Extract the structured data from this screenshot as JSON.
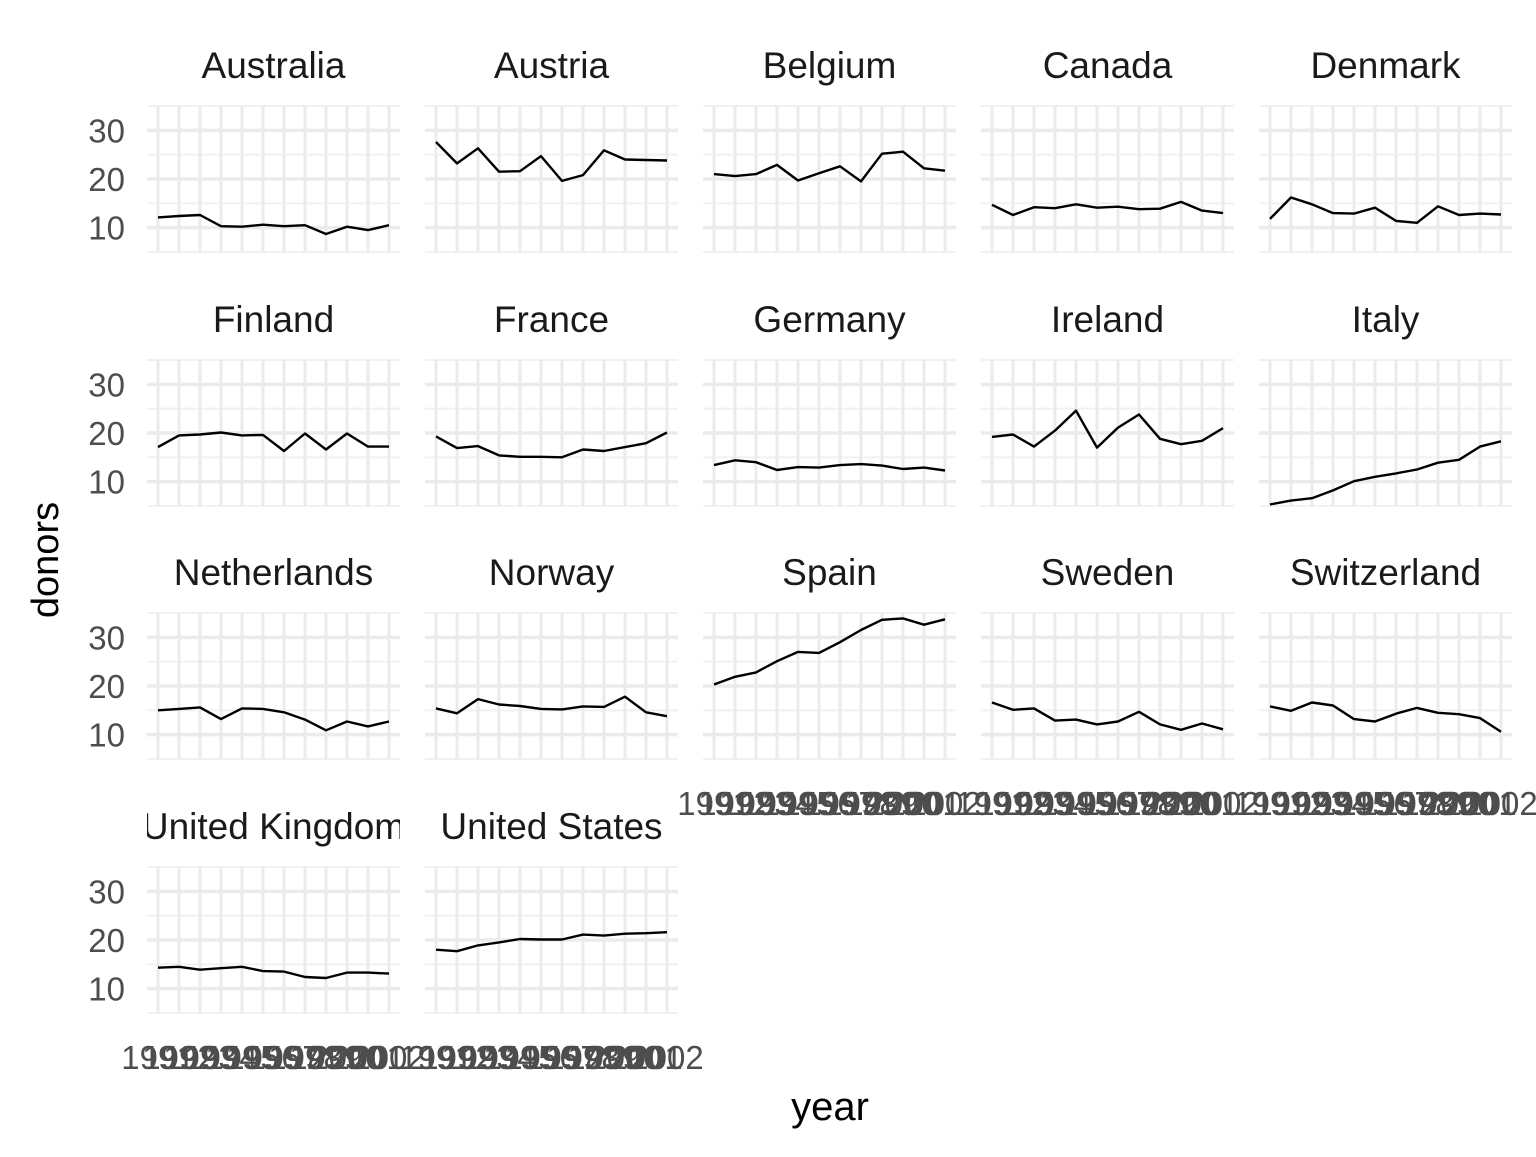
{
  "chart_data": {
    "type": "line",
    "facet": "small-multiples",
    "xlabel": "year",
    "ylabel": "donors",
    "x": [
      1991,
      1992,
      1993,
      1994,
      1995,
      1996,
      1997,
      1998,
      1999,
      2000,
      2001,
      2002
    ],
    "ylim": [
      5,
      35
    ],
    "yticks": [
      10,
      20,
      30
    ],
    "xtick_labels": [
      "1991",
      "1992",
      "1993",
      "1994",
      "1995",
      "1996",
      "1997",
      "1998",
      "1999",
      "2000",
      "2001",
      "2002"
    ],
    "grid": true,
    "line_color": "#000000",
    "grid_color": "#ebebeb",
    "panels": [
      {
        "country": "Australia",
        "values": [
          12.1,
          12.4,
          12.6,
          10.3,
          10.2,
          10.6,
          10.3,
          10.5,
          8.7,
          10.2,
          9.5,
          10.5
        ]
      },
      {
        "country": "Austria",
        "values": [
          27.6,
          23.2,
          26.3,
          21.5,
          21.6,
          24.7,
          19.6,
          20.8,
          25.9,
          24.0,
          23.9,
          23.8
        ]
      },
      {
        "country": "Belgium",
        "values": [
          21.0,
          20.6,
          21.0,
          22.9,
          19.7,
          21.2,
          22.6,
          19.5,
          25.2,
          25.6,
          22.2,
          21.7
        ]
      },
      {
        "country": "Canada",
        "values": [
          14.7,
          12.6,
          14.2,
          14.0,
          14.8,
          14.1,
          14.3,
          13.8,
          13.9,
          15.3,
          13.5,
          13.0
        ]
      },
      {
        "country": "Denmark",
        "values": [
          11.8,
          16.2,
          14.8,
          13.0,
          12.9,
          14.1,
          11.4,
          11.0,
          14.4,
          12.6,
          12.9,
          12.7
        ]
      },
      {
        "country": "Finland",
        "values": [
          17.1,
          19.5,
          19.7,
          20.1,
          19.5,
          19.6,
          16.3,
          19.9,
          16.6,
          19.9,
          17.2,
          17.2
        ]
      },
      {
        "country": "France",
        "values": [
          19.3,
          16.9,
          17.3,
          15.4,
          15.1,
          15.1,
          15.0,
          16.6,
          16.3,
          17.1,
          17.9,
          20.1
        ]
      },
      {
        "country": "Germany",
        "values": [
          13.4,
          14.4,
          14.0,
          12.4,
          13.0,
          12.9,
          13.4,
          13.6,
          13.3,
          12.6,
          12.9,
          12.3
        ]
      },
      {
        "country": "Ireland",
        "values": [
          19.2,
          19.7,
          17.2,
          20.5,
          24.6,
          17.0,
          21.1,
          23.8,
          18.8,
          17.7,
          18.4,
          21.0
        ]
      },
      {
        "country": "Italy",
        "values": [
          5.3,
          6.1,
          6.6,
          8.2,
          10.1,
          11.0,
          11.7,
          12.5,
          13.9,
          14.5,
          17.2,
          18.3
        ]
      },
      {
        "country": "Netherlands",
        "values": [
          15.0,
          15.3,
          15.6,
          13.2,
          15.4,
          15.3,
          14.6,
          13.1,
          10.9,
          12.7,
          11.7,
          12.7
        ]
      },
      {
        "country": "Norway",
        "values": [
          15.4,
          14.4,
          17.3,
          16.2,
          15.9,
          15.3,
          15.2,
          15.8,
          15.7,
          17.8,
          14.6,
          13.8
        ]
      },
      {
        "country": "Spain",
        "values": [
          20.3,
          21.9,
          22.8,
          25.1,
          27.0,
          26.8,
          29.0,
          31.5,
          33.6,
          33.9,
          32.6,
          33.7
        ]
      },
      {
        "country": "Sweden",
        "values": [
          16.6,
          15.1,
          15.4,
          12.9,
          13.1,
          12.1,
          12.7,
          14.7,
          12.1,
          11.0,
          12.3,
          11.1
        ]
      },
      {
        "country": "Switzerland",
        "values": [
          15.8,
          14.9,
          16.6,
          16.0,
          13.2,
          12.7,
          14.3,
          15.5,
          14.5,
          14.2,
          13.4,
          10.6
        ]
      },
      {
        "country": "United Kingdom",
        "values": [
          14.3,
          14.5,
          13.9,
          14.2,
          14.5,
          13.6,
          13.5,
          12.4,
          12.2,
          13.3,
          13.3,
          13.1
        ]
      },
      {
        "country": "United States",
        "values": [
          18.0,
          17.7,
          18.9,
          19.5,
          20.2,
          20.1,
          20.1,
          21.1,
          20.9,
          21.3,
          21.4,
          21.6
        ]
      }
    ]
  }
}
